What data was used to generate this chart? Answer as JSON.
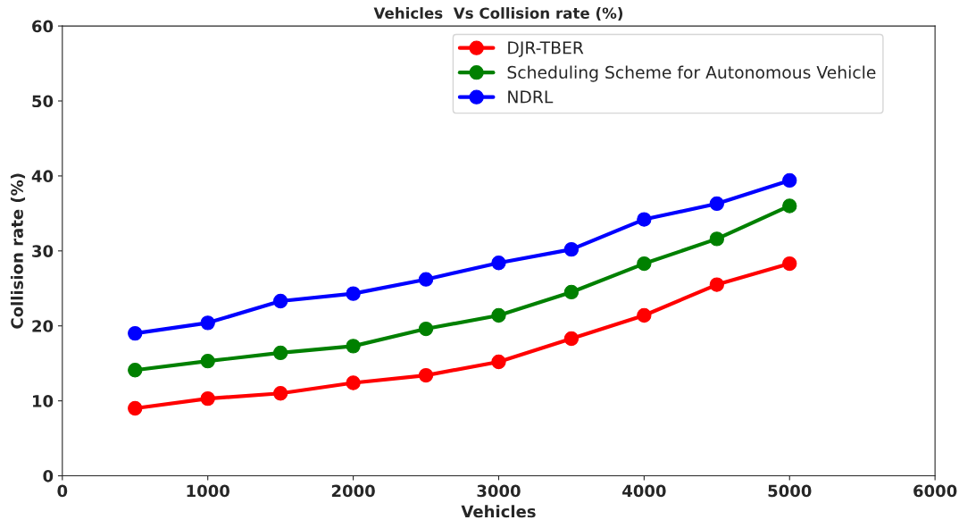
{
  "chart_data": {
    "type": "line",
    "title": "Vehicles  Vs Collision rate (%)",
    "xlabel": "Vehicles",
    "ylabel": "Collision rate (%)",
    "x": [
      500,
      1000,
      1500,
      2000,
      2500,
      3000,
      3500,
      4000,
      4500,
      5000
    ],
    "series": [
      {
        "name": "DJR-TBER",
        "color": "#ff0000",
        "values": [
          9.0,
          10.3,
          11.0,
          12.4,
          13.4,
          15.2,
          18.3,
          21.4,
          25.5,
          28.3
        ]
      },
      {
        "name": "Scheduling Scheme for Autonomous Vehicle",
        "color": "#008000",
        "values": [
          14.1,
          15.3,
          16.4,
          17.3,
          19.6,
          21.4,
          24.5,
          28.3,
          31.6,
          36.0
        ]
      },
      {
        "name": "NDRL",
        "color": "#0000ff",
        "values": [
          19.0,
          20.4,
          23.3,
          24.3,
          26.2,
          28.4,
          30.2,
          34.2,
          36.3,
          39.4
        ]
      }
    ],
    "xlim": [
      0,
      6000
    ],
    "xticks": [
      0,
      1000,
      2000,
      3000,
      4000,
      5000,
      6000
    ],
    "ylim": [
      0,
      60
    ],
    "yticks": [
      0,
      10,
      20,
      30,
      40,
      50,
      60
    ],
    "grid": false,
    "legend": "top right",
    "marker": "circle",
    "line_style": "solid"
  }
}
